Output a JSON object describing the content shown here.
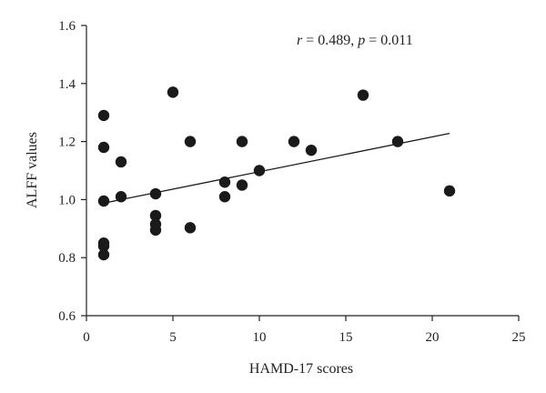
{
  "chart_data": {
    "type": "scatter",
    "xlabel": "HAMD-17 scores",
    "ylabel": "ALFF values",
    "xlim": [
      0,
      25
    ],
    "ylim": [
      0.6,
      1.6
    ],
    "x_ticks": [
      0,
      5,
      10,
      15,
      20,
      25
    ],
    "y_ticks": [
      0.6,
      0.8,
      1.0,
      1.2,
      1.4,
      1.6
    ],
    "x_tick_labels": [
      "0",
      "5",
      "10",
      "15",
      "20",
      "25"
    ],
    "y_tick_labels": [
      "0.6",
      "0.8",
      "1.0",
      "1.2",
      "1.4",
      "1.6"
    ],
    "grid": false,
    "annotation": {
      "r_label": "r",
      "r_value": " = 0.489, ",
      "p_label": "p",
      "p_value": " = 0.011"
    },
    "points": [
      {
        "x": 1,
        "y": 1.29
      },
      {
        "x": 1,
        "y": 1.18
      },
      {
        "x": 1,
        "y": 0.995
      },
      {
        "x": 1,
        "y": 0.85
      },
      {
        "x": 1,
        "y": 0.84
      },
      {
        "x": 1,
        "y": 0.81
      },
      {
        "x": 2,
        "y": 1.13
      },
      {
        "x": 2,
        "y": 1.01
      },
      {
        "x": 4,
        "y": 1.02
      },
      {
        "x": 4,
        "y": 0.945
      },
      {
        "x": 4,
        "y": 0.915
      },
      {
        "x": 4,
        "y": 0.895
      },
      {
        "x": 5,
        "y": 1.37
      },
      {
        "x": 6,
        "y": 1.2
      },
      {
        "x": 6,
        "y": 0.903
      },
      {
        "x": 8,
        "y": 1.06
      },
      {
        "x": 8,
        "y": 1.01
      },
      {
        "x": 9,
        "y": 1.2
      },
      {
        "x": 9,
        "y": 1.05
      },
      {
        "x": 10,
        "y": 1.1
      },
      {
        "x": 12,
        "y": 1.2
      },
      {
        "x": 13,
        "y": 1.17
      },
      {
        "x": 16,
        "y": 1.36
      },
      {
        "x": 18,
        "y": 1.2
      },
      {
        "x": 21,
        "y": 1.03
      }
    ],
    "fit_line": {
      "x_start": 1,
      "y_start": 0.988,
      "x_end": 21,
      "y_end": 1.228
    },
    "point_color": "#1a1a1a"
  }
}
